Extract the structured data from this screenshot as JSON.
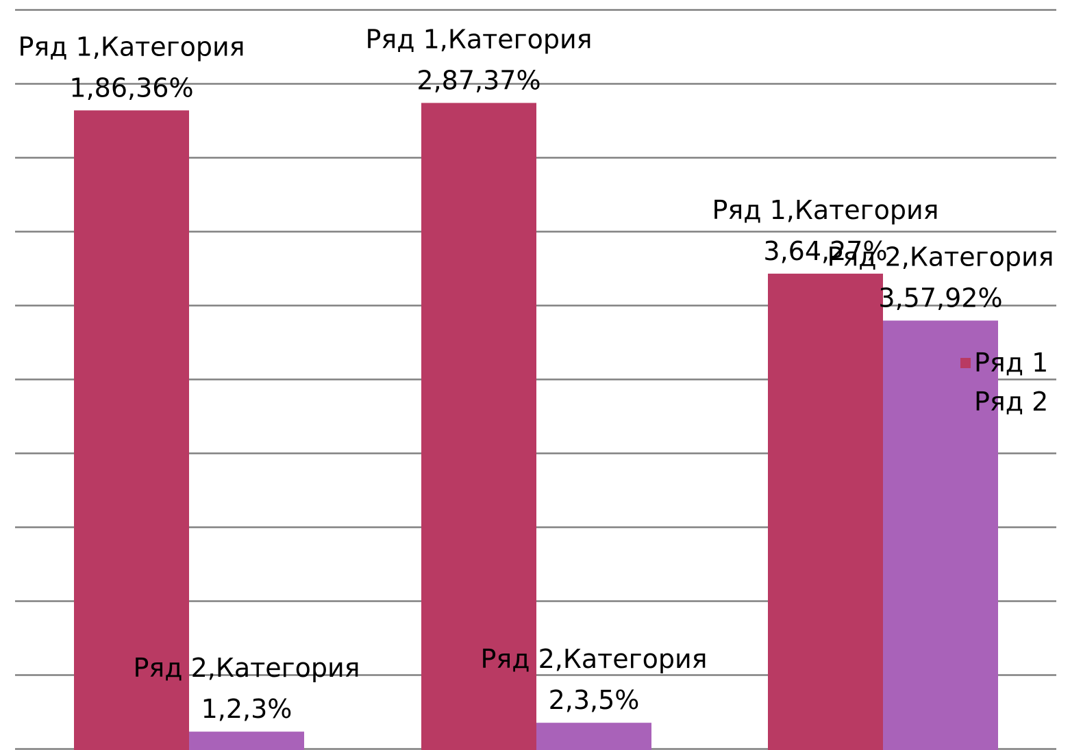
{
  "chart_data": {
    "type": "bar",
    "categories": [
      "Категория 1",
      "Категория 2",
      "Категория 3"
    ],
    "series": [
      {
        "name": "Ряд 1",
        "values": [
          86.36,
          87.37,
          64.27
        ],
        "color": "#b93a63"
      },
      {
        "name": "Ряд 2",
        "values": [
          2.3,
          3.5,
          57.92
        ],
        "color": "#a962b9"
      }
    ],
    "data_labels": [
      [
        {
          "line1": "Ряд 1,Категория",
          "line2": "1,86,36%"
        },
        {
          "line1": "Ряд 1,Категория",
          "line2": "2,87,37%"
        },
        {
          "line1": "Ряд 1,Категория",
          "line2": "3,64,27%"
        }
      ],
      [
        {
          "line1": "Ряд 2,Категория",
          "line2": "1,2,3%"
        },
        {
          "line1": "Ряд 2,Категория",
          "line2": "2,3,5%"
        },
        {
          "line1": "Ряд 2,Категория",
          "line2": "3,57,92%"
        }
      ]
    ],
    "legend": {
      "position": "right",
      "entries": [
        "Ряд 1",
        "Ряд 2"
      ]
    },
    "ylim": [
      0,
      100
    ],
    "grid": true,
    "gridline_color": "#808080",
    "title": "",
    "xlabel": "",
    "ylabel": ""
  }
}
